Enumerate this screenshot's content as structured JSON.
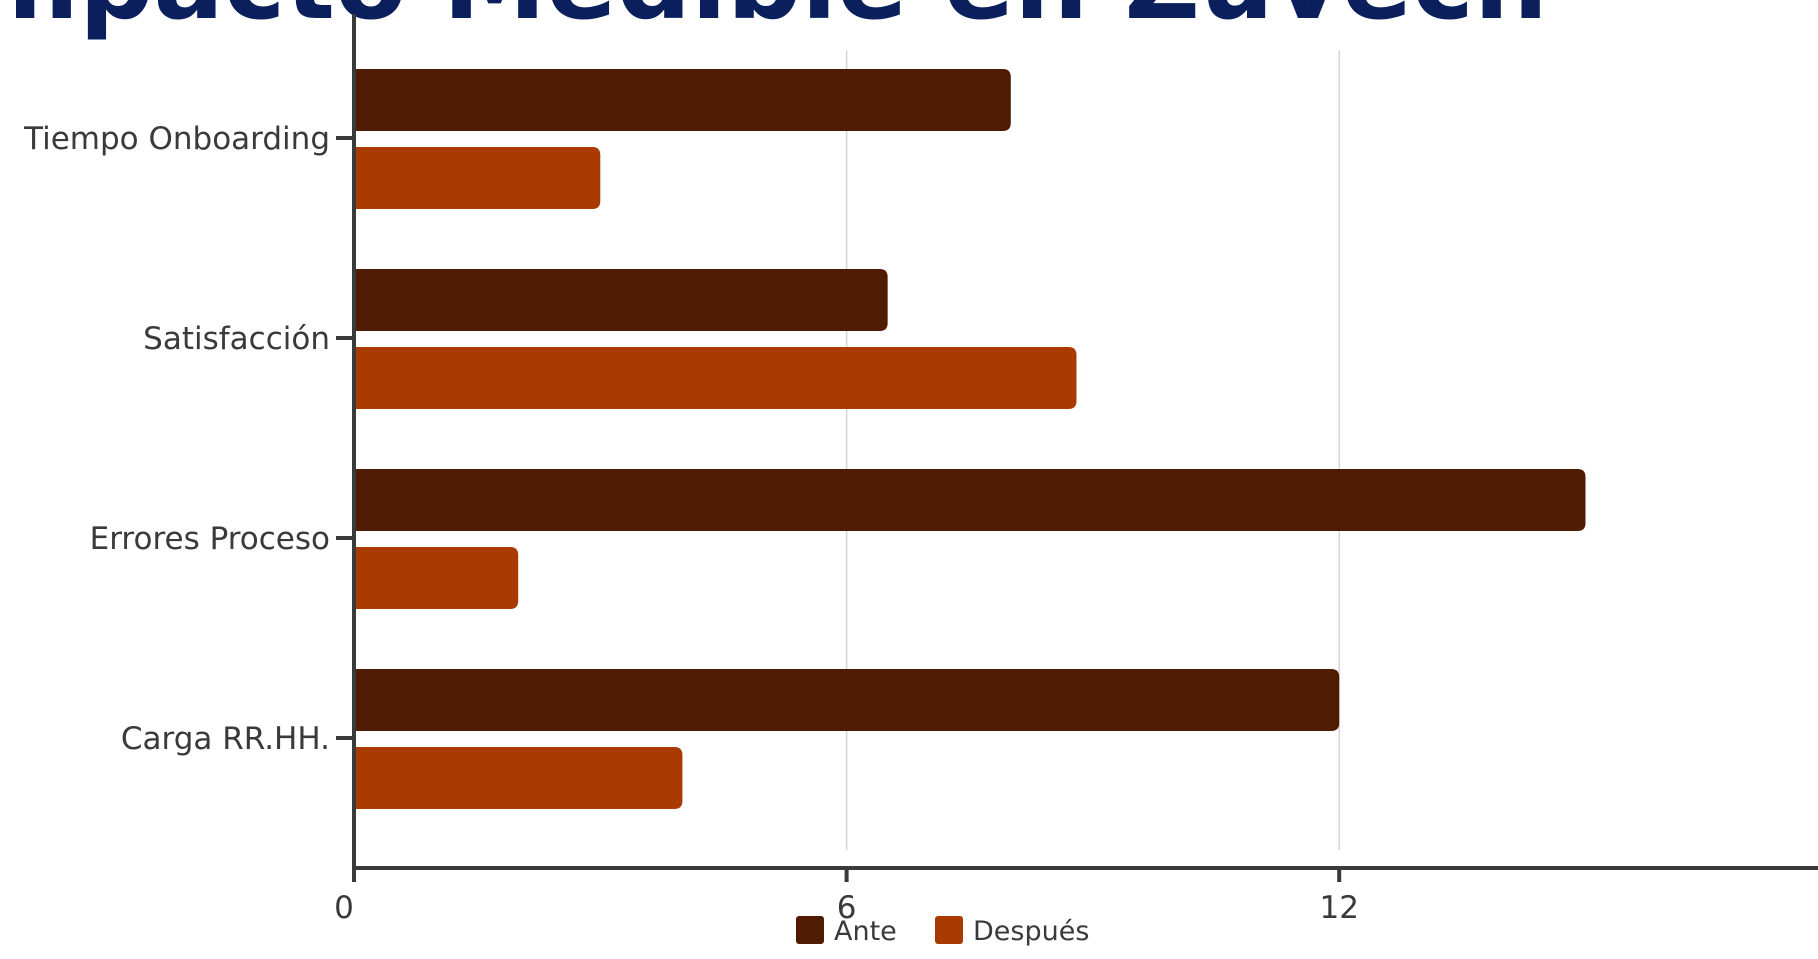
{
  "chart_data": {
    "type": "bar",
    "orientation": "horizontal",
    "title": "Impacto Medible en Zuvecn",
    "categories": [
      "Tiempo Onboarding",
      "Satisfacción",
      "Errores Proceso",
      "Carga RR.HH."
    ],
    "series": [
      {
        "name": "Ante",
        "values": [
          8,
          6.5,
          15,
          12
        ]
      },
      {
        "name": "Después",
        "values": [
          3,
          8.8,
          2,
          4
        ]
      }
    ],
    "xlim": [
      0,
      18
    ],
    "xticks": [
      0,
      6,
      12
    ],
    "grid": true,
    "legend": "bottom"
  },
  "colors": {
    "title": "#0a1f5c",
    "series": [
      "#4f1c03",
      "#a83a02"
    ],
    "axis": "#3a3a3a",
    "grid": "#d4d4d4",
    "label": "#3a3a3a"
  }
}
